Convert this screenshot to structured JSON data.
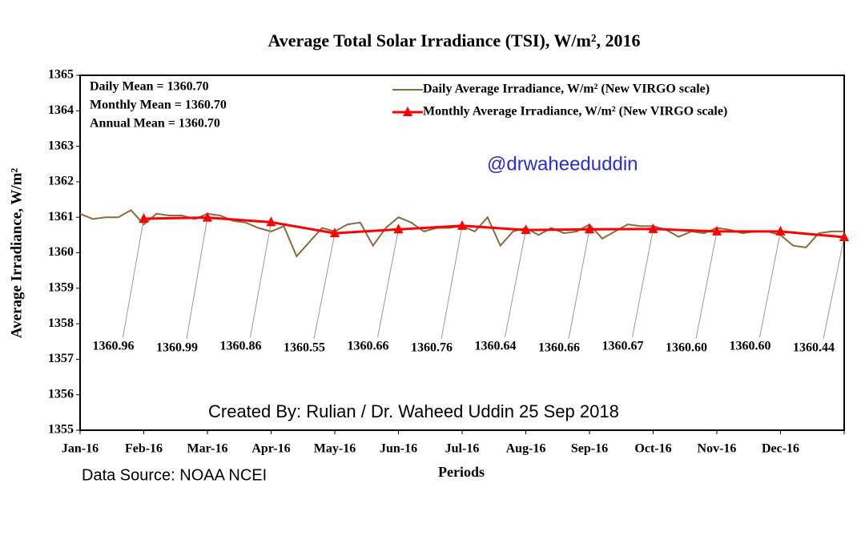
{
  "chart_data": {
    "type": "line",
    "title": "Average Total Solar Irradiance (TSI), W/m², 2016",
    "x_label": "Periods",
    "y_label": "Average Irradiance, W/m²",
    "xlim": [
      0,
      12
    ],
    "xticks": [
      {
        "value": 0,
        "label": "Jan-16"
      },
      {
        "value": 1,
        "label": "Feb-16"
      },
      {
        "value": 2,
        "label": "Mar-16"
      },
      {
        "value": 3,
        "label": "Apr-16"
      },
      {
        "value": 4,
        "label": "May-16"
      },
      {
        "value": 5,
        "label": "Jun-16"
      },
      {
        "value": 6,
        "label": "Jul-16"
      },
      {
        "value": 7,
        "label": "Aug-16"
      },
      {
        "value": 8,
        "label": "Sep-16"
      },
      {
        "value": 9,
        "label": "Oct-16"
      },
      {
        "value": 10,
        "label": "Nov-16"
      },
      {
        "value": 11,
        "label": "Dec-16"
      },
      12
    ],
    "ylim": [
      1355,
      1365
    ],
    "yticks": [
      1355,
      1356,
      1357,
      1358,
      1359,
      1360,
      1361,
      1362,
      1363,
      1364,
      1365
    ],
    "legend": "upper right",
    "annotations": [
      "Daily Mean = 1360.70",
      "Monthly Mean = 1360.70",
      "Annual  Mean = 1360.70",
      "@drwaheeduddin",
      "Created By: Rulian / Dr. Waheed Uddin   25 Sep 2018",
      "Data Source: NOAA  NCEI"
    ],
    "series": [
      {
        "name": "Daily Average Irradiance, W/m² (New VIRGO scale)",
        "color": "#8b6b3d",
        "x": [
          0,
          0.2,
          0.4,
          0.6,
          0.8,
          1,
          1.2,
          1.4,
          1.6,
          1.8,
          2,
          2.2,
          2.4,
          2.6,
          2.8,
          3,
          3.2,
          3.4,
          3.6,
          3.8,
          4,
          4.2,
          4.4,
          4.6,
          4.8,
          5,
          5.2,
          5.4,
          5.6,
          5.8,
          6,
          6.2,
          6.4,
          6.6,
          6.8,
          7,
          7.2,
          7.4,
          7.6,
          7.8,
          8,
          8.2,
          8.4,
          8.6,
          8.8,
          9,
          9.2,
          9.4,
          9.6,
          9.8,
          10,
          10.2,
          10.4,
          10.6,
          10.8,
          11,
          11.2,
          11.4,
          11.6,
          11.8,
          12
        ],
        "values": [
          1361.1,
          1360.95,
          1361.0,
          1361.0,
          1361.2,
          1360.8,
          1361.1,
          1361.05,
          1361.05,
          1360.95,
          1361.1,
          1361.05,
          1360.9,
          1360.85,
          1360.7,
          1360.6,
          1360.75,
          1359.9,
          1360.3,
          1360.7,
          1360.6,
          1360.8,
          1360.85,
          1360.2,
          1360.7,
          1361.0,
          1360.85,
          1360.6,
          1360.7,
          1360.7,
          1360.75,
          1360.6,
          1361.0,
          1360.2,
          1360.6,
          1360.7,
          1360.5,
          1360.7,
          1360.55,
          1360.6,
          1360.8,
          1360.4,
          1360.6,
          1360.8,
          1360.75,
          1360.75,
          1360.65,
          1360.45,
          1360.6,
          1360.55,
          1360.7,
          1360.65,
          1360.55,
          1360.6,
          1360.6,
          1360.5,
          1360.2,
          1360.15,
          1360.55,
          1360.6,
          1360.6
        ]
      },
      {
        "name": "Monthly Average Irradiance, W/m² (New VIRGO scale)",
        "color": "#ff0000",
        "x": [
          1,
          2,
          3,
          4,
          5,
          6,
          7,
          8,
          9,
          10,
          11,
          12
        ],
        "values": [
          1360.96,
          1360.99,
          1360.86,
          1360.55,
          1360.66,
          1360.76,
          1360.64,
          1360.66,
          1360.67,
          1360.6,
          1360.6,
          1360.44
        ],
        "value_labels": [
          "1360.96",
          "1360.99",
          "1360.86",
          "1360.55",
          "1360.66",
          "1360.76",
          "1360.64",
          "1360.66",
          "1360.67",
          "1360.60",
          "1360.60",
          "1360.44"
        ]
      }
    ]
  }
}
